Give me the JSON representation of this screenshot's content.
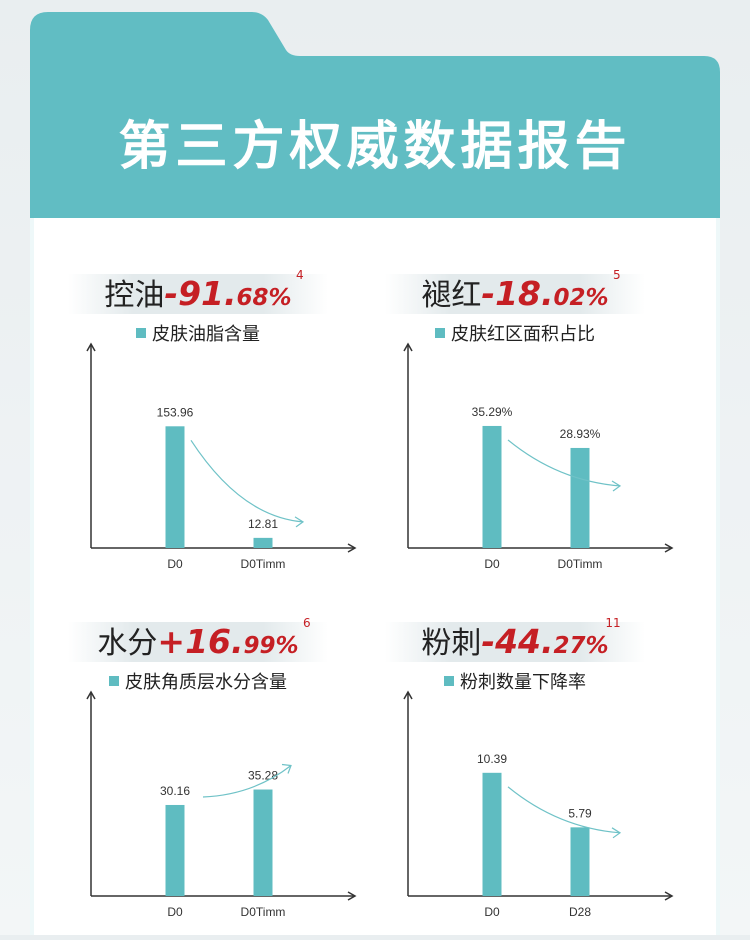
{
  "page": {
    "title": "第三方权威数据报告",
    "colors": {
      "teal_header": "#61bdc3",
      "teal_bar": "#5fbcc1",
      "card_bg": "#eef8f9",
      "accent_red": "#c51f24"
    }
  },
  "panels": [
    {
      "label": "控油",
      "sign": "-",
      "value_main": "91.",
      "value_tail": "68%",
      "footnote": "4",
      "chart_data": {
        "type": "bar",
        "legend": "皮肤油脂含量",
        "categories": [
          "D0",
          "D0Timm"
        ],
        "values": [
          153.96,
          12.81
        ],
        "value_labels": [
          "153.96",
          "12.81"
        ],
        "ylim": [
          0,
          210
        ],
        "trend_arrow": "down"
      }
    },
    {
      "label": "褪红",
      "sign": "-",
      "value_main": "18.",
      "value_tail": "02%",
      "footnote": "5",
      "chart_data": {
        "type": "bar",
        "legend": "皮肤红区面积占比",
        "categories": [
          "D0",
          "D0Timm"
        ],
        "values": [
          35.29,
          28.93
        ],
        "value_labels": [
          "35.29%",
          "28.93%"
        ],
        "ylim": [
          0,
          48
        ],
        "trend_arrow": "down"
      }
    },
    {
      "label": "水分",
      "sign": "+",
      "value_main": "16.",
      "value_tail": "99%",
      "footnote": "6",
      "chart_data": {
        "type": "bar",
        "legend": "皮肤角质层水分含量",
        "categories": [
          "D0",
          "D0Timm"
        ],
        "values": [
          30.16,
          35.28
        ],
        "value_labels": [
          "30.16",
          "35.28"
        ],
        "ylim": [
          0,
          55
        ],
        "trend_arrow": "up"
      }
    },
    {
      "label": "粉刺",
      "sign": "-",
      "value_main": "44.",
      "value_tail": "27%",
      "footnote": "11",
      "chart_data": {
        "type": "bar",
        "legend": "粉刺数量下降率",
        "categories": [
          "D0",
          "D28"
        ],
        "values": [
          10.39,
          5.79
        ],
        "value_labels": [
          "10.39",
          "5.79"
        ],
        "ylim": [
          0,
          14
        ],
        "trend_arrow": "down"
      }
    }
  ]
}
